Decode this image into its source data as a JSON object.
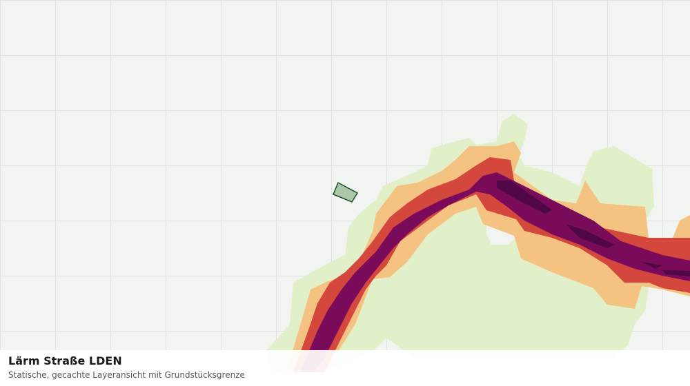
{
  "panel": {
    "title": "Lärm Straße LDEN",
    "subtitle": "Statische, gecachte Layeransicht mit Grundstücksgrenze"
  }
}
